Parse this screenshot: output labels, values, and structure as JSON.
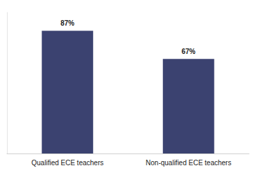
{
  "chart_data": {
    "type": "bar",
    "categories": [
      "Qualified ECE teachers",
      "Non-qualified ECE teachers"
    ],
    "values": [
      87,
      67
    ],
    "value_labels": [
      "87%",
      "67%"
    ],
    "color": "#3b4270",
    "ylim": [
      0,
      100
    ],
    "yticks": [],
    "grid": false,
    "data_labels": true,
    "tick_labels": "x"
  }
}
